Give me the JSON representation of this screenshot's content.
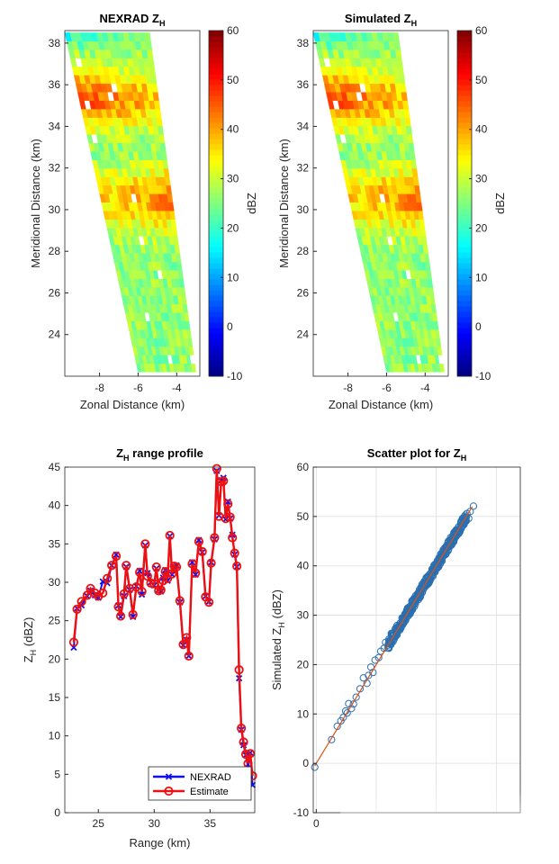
{
  "chart_data": [
    {
      "type": "heatmap",
      "title": "NEXRAD Z",
      "title_sub": "H",
      "xlabel": "Zonal Distance (km)",
      "ylabel": "Meridional Distance (km)",
      "xlim": [
        -9.8,
        -2.8
      ],
      "ylim": [
        22,
        38.6
      ],
      "xticks": [
        -8,
        -6,
        -4
      ],
      "yticks": [
        24,
        26,
        28,
        30,
        32,
        34,
        36,
        38
      ],
      "colorbar": {
        "label": "dBZ",
        "range": [
          -10,
          60
        ],
        "ticks": [
          -10,
          0,
          10,
          20,
          30,
          40,
          50,
          60
        ]
      },
      "field": {
        "range_km": [
          22.2,
          38.5
        ],
        "left_edge_x": [
          -6.0,
          -9.8
        ],
        "right_edge_x": [
          -3.0,
          -5.4
        ],
        "rows": 40,
        "cols": 16,
        "band_centers_y": [
          35.3,
          30.5
        ],
        "band_peak_dBZ": [
          42,
          40
        ],
        "background_dBZ": 26
      }
    },
    {
      "type": "heatmap",
      "title": "Simulated Z",
      "title_sub": "H",
      "xlabel": "Zonal Distance (km)",
      "ylabel": "Meridional Distance (km)",
      "xlim": [
        -9.8,
        -2.8
      ],
      "ylim": [
        22,
        38.6
      ],
      "xticks": [
        -8,
        -6,
        -4
      ],
      "yticks": [
        24,
        26,
        28,
        30,
        32,
        34,
        36,
        38
      ],
      "colorbar": {
        "label": "dBZ",
        "range": [
          -10,
          60
        ],
        "ticks": [
          -10,
          0,
          10,
          20,
          30,
          40,
          50,
          60
        ]
      },
      "field": {
        "range_km": [
          22.2,
          38.5
        ],
        "left_edge_x": [
          -6.0,
          -9.8
        ],
        "right_edge_x": [
          -3.0,
          -5.4
        ],
        "rows": 40,
        "cols": 16,
        "band_centers_y": [
          35.3,
          30.5
        ],
        "band_peak_dBZ": [
          42,
          40
        ],
        "background_dBZ": 26
      }
    },
    {
      "type": "line",
      "title": "Z",
      "title_sub": "H",
      "title_rest": " range profile",
      "xlabel": "Range (km)",
      "ylabel": "Z",
      "ylabel_sub": "H",
      "ylabel_rest": " (dBZ)",
      "xlim": [
        22,
        39
      ],
      "ylim": [
        0,
        45
      ],
      "xticks": [
        25,
        30,
        35
      ],
      "yticks": [
        0,
        5,
        10,
        15,
        20,
        25,
        30,
        35,
        40,
        45
      ],
      "legend_position": "bottom-right",
      "x": [
        22.8,
        23.1,
        23.5,
        24.0,
        24.3,
        24.7,
        25.0,
        25.4,
        25.8,
        26.2,
        26.6,
        26.8,
        27.0,
        27.3,
        27.5,
        27.8,
        28.1,
        28.4,
        28.7,
        28.9,
        29.2,
        29.4,
        29.7,
        30.0,
        30.2,
        30.4,
        30.6,
        30.8,
        31.0,
        31.2,
        31.4,
        31.6,
        31.8,
        32.0,
        32.3,
        32.6,
        32.9,
        33.1,
        33.4,
        33.7,
        34.0,
        34.3,
        34.6,
        34.9,
        35.1,
        35.4,
        35.6,
        35.8,
        36.0,
        36.2,
        36.4,
        36.6,
        36.8,
        37.0,
        37.2,
        37.4,
        37.6,
        37.8,
        38.0,
        38.2,
        38.4,
        38.6,
        38.8
      ],
      "series": [
        {
          "name": "NEXRAD",
          "color": "#1010ee",
          "values": [
            21.5,
            26.6,
            27.0,
            28.2,
            28.9,
            28.3,
            28.0,
            30.1,
            29.9,
            32.2,
            33.6,
            27.0,
            25.5,
            28.2,
            32.0,
            29.0,
            25.5,
            29.5,
            31.5,
            28.4,
            34.8,
            31.2,
            30.0,
            29.6,
            31.8,
            29.0,
            28.8,
            30.6,
            31.6,
            30.2,
            36.0,
            31.0,
            32.0,
            32.2,
            27.4,
            21.8,
            22.5,
            20.4,
            32.6,
            31.0,
            35.5,
            33.9,
            28.2,
            27.5,
            32.6,
            35.6,
            44.5,
            38.7,
            43.3,
            43.6,
            38.2,
            40.5,
            38.3,
            36.2,
            33.6,
            32.0,
            17.5,
            10.8,
            8.8,
            7.5,
            5.8,
            7.8,
            3.6
          ]
        },
        {
          "name": "Estimate",
          "color": "#ee1010",
          "values": [
            22.2,
            26.5,
            27.5,
            28.3,
            29.2,
            28.6,
            28.2,
            28.6,
            30.5,
            32.2,
            33.4,
            26.8,
            25.6,
            28.5,
            32.2,
            29.2,
            25.8,
            29.4,
            31.3,
            28.8,
            35.0,
            30.8,
            29.9,
            29.8,
            32.0,
            28.9,
            29.0,
            30.2,
            31.4,
            30.5,
            36.1,
            31.1,
            32.1,
            32.0,
            27.6,
            21.9,
            22.8,
            20.4,
            32.4,
            31.2,
            35.3,
            34.0,
            28.1,
            27.4,
            32.5,
            35.8,
            44.8,
            38.6,
            43.1,
            43.2,
            38.3,
            40.2,
            38.5,
            35.8,
            33.8,
            32.1,
            18.6,
            11.0,
            9.2,
            7.6,
            6.4,
            7.7,
            4.8
          ]
        }
      ]
    },
    {
      "type": "scatter",
      "title": "Scatter plot for Z",
      "title_sub": "H",
      "xlabel": "",
      "ylabel": "Simulated Z",
      "ylabel_sub": "H",
      "ylabel_rest": " (dBZ)",
      "xlim": [
        -1,
        68
      ],
      "ylim": [
        -10,
        60
      ],
      "xticks": [
        0
      ],
      "yticks": [
        -10,
        0,
        10,
        20,
        30,
        40,
        50,
        60
      ],
      "grid": true,
      "fit_line": {
        "from": [
          -0.5,
          -0.5
        ],
        "to": [
          52,
          52
        ],
        "color": "#d95319"
      },
      "sparse_points": [
        [
          -0.5,
          -0.8
        ],
        [
          7.0,
          7.5
        ],
        [
          8.2,
          8.6
        ],
        [
          9.0,
          9.3
        ],
        [
          9.8,
          10.6
        ],
        [
          10.8,
          12.1
        ],
        [
          12.4,
          12.0
        ],
        [
          13.3,
          13.4
        ],
        [
          14.6,
          15.1
        ],
        [
          15.7,
          17.3
        ],
        [
          16.9,
          16.2
        ],
        [
          17.4,
          17.8
        ],
        [
          18.2,
          19.5
        ],
        [
          18.9,
          18.4
        ],
        [
          19.6,
          20.9
        ],
        [
          20.8,
          21.4
        ],
        [
          21.5,
          22.7
        ],
        [
          22.6,
          23.3
        ],
        [
          23.1,
          24.5
        ],
        [
          24.2,
          24.8
        ],
        [
          25.0,
          26.3
        ],
        [
          5.1,
          4.8
        ],
        [
          10.3,
          10.2
        ],
        [
          11.7,
          11.1
        ]
      ],
      "dense_range": [
        24,
        50
      ],
      "top_points": [
        [
          50.2,
          50.6
        ],
        [
          51.3,
          51.0
        ],
        [
          52.4,
          52.1
        ],
        [
          50.8,
          49.6
        ]
      ]
    }
  ]
}
